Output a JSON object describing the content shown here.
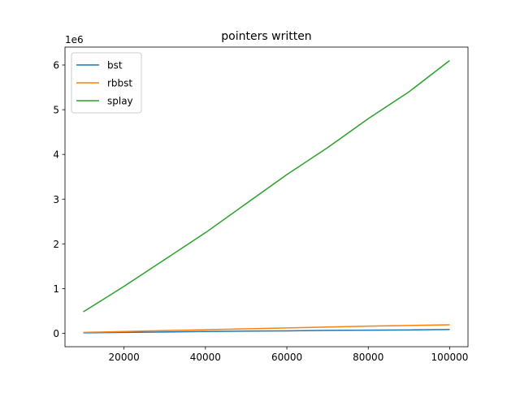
{
  "chart_data": {
    "type": "line",
    "title": "pointers written",
    "xlabel": "",
    "ylabel": "",
    "y_multiplier_label": "1e6",
    "x": [
      10000,
      20000,
      30000,
      40000,
      50000,
      60000,
      70000,
      80000,
      90000,
      100000
    ],
    "xlim": [
      5500,
      104500
    ],
    "ylim": [
      -0.3,
      6.4
    ],
    "x_ticks": [
      20000,
      40000,
      60000,
      80000,
      100000
    ],
    "y_ticks": [
      0,
      1,
      2,
      3,
      4,
      5,
      6
    ],
    "grid": false,
    "legend_position": "top-left",
    "series": [
      {
        "name": "bst",
        "color": "#1f77b4",
        "values": [
          0.01,
          0.02,
          0.03,
          0.04,
          0.05,
          0.055,
          0.065,
          0.07,
          0.075,
          0.085
        ]
      },
      {
        "name": "rbbst",
        "color": "#ff7f0e",
        "values": [
          0.02,
          0.04,
          0.06,
          0.08,
          0.1,
          0.12,
          0.14,
          0.16,
          0.175,
          0.19
        ]
      },
      {
        "name": "splay",
        "color": "#2ca02c",
        "values": [
          0.48,
          1.05,
          1.65,
          2.25,
          2.9,
          3.55,
          4.15,
          4.8,
          5.4,
          6.1
        ]
      }
    ]
  }
}
